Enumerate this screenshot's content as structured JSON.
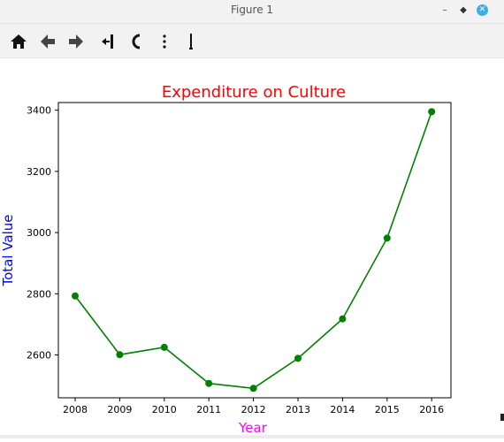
{
  "window": {
    "title": "Figure 1",
    "minimize_glyph": "–",
    "maximize_glyph": "◆",
    "close_glyph": "✕"
  },
  "toolbar": {
    "items": [
      {
        "name": "home-icon"
      },
      {
        "name": "back-arrow-icon"
      },
      {
        "name": "forward-arrow-icon"
      },
      {
        "name": "pan-icon"
      },
      {
        "name": "zoom-icon"
      },
      {
        "name": "subplots-configure-icon"
      },
      {
        "name": "save-icon"
      }
    ]
  },
  "chart_data": {
    "type": "line",
    "title": "Expenditure on Culture",
    "xlabel": "Year",
    "ylabel": "Total Value",
    "categories": [
      "2008",
      "2009",
      "2010",
      "2011",
      "2012",
      "2013",
      "2014",
      "2015",
      "2016"
    ],
    "values": [
      2793,
      2601,
      2625,
      2507,
      2491,
      2589,
      2718,
      2982,
      3395
    ],
    "yticks": [
      2600,
      2800,
      3000,
      3200,
      3400
    ],
    "ylim": [
      2460,
      3425
    ],
    "grid": false,
    "marker": "circle",
    "colors": {
      "line": "#008000",
      "title": "#ff0000",
      "xlabel": "#ff00ff",
      "ylabel": "#0000ff"
    }
  }
}
